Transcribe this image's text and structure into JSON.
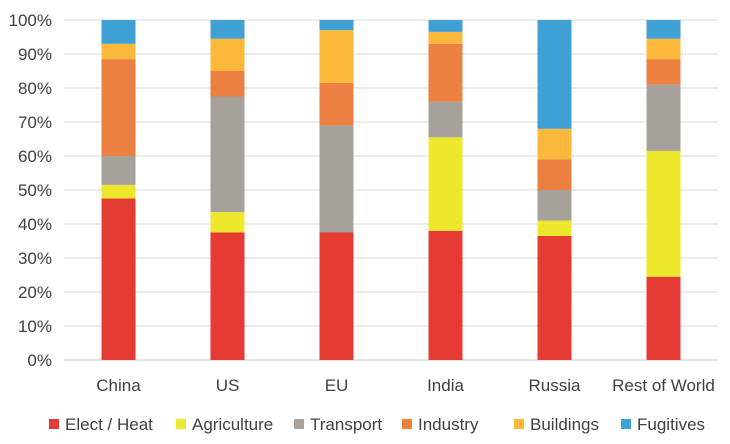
{
  "chart_data": {
    "type": "bar",
    "stacked": true,
    "categories": [
      "China",
      "US",
      "EU",
      "India",
      "Russia",
      "Rest of World"
    ],
    "series": [
      {
        "name": "Elect / Heat",
        "color": "#e63b33",
        "values": [
          47.5,
          37.5,
          37.5,
          38.0,
          36.5,
          24.5
        ]
      },
      {
        "name": "Agriculture",
        "color": "#ede82c",
        "values": [
          4.0,
          6.0,
          0.0,
          27.5,
          4.5,
          37.0
        ]
      },
      {
        "name": "Transport",
        "color": "#a7a19b",
        "values": [
          8.5,
          34.0,
          31.5,
          10.5,
          9.0,
          19.5
        ]
      },
      {
        "name": "Industry",
        "color": "#ec8040",
        "values": [
          28.5,
          7.5,
          12.5,
          17.0,
          9.0,
          7.5
        ]
      },
      {
        "name": "Buildings",
        "color": "#fbb83b",
        "values": [
          4.5,
          9.5,
          15.5,
          3.5,
          9.0,
          6.0
        ]
      },
      {
        "name": "Fugitives",
        "color": "#3fa0d3",
        "values": [
          7.0,
          5.5,
          3.0,
          3.5,
          32.0,
          5.5
        ]
      }
    ],
    "ylim": [
      0,
      100
    ],
    "yticks": [
      "0%",
      "10%",
      "20%",
      "30%",
      "40%",
      "50%",
      "60%",
      "70%",
      "80%",
      "90%",
      "100%"
    ],
    "grid": true,
    "legend_position": "bottom",
    "title": "",
    "xlabel": "",
    "ylabel": ""
  }
}
